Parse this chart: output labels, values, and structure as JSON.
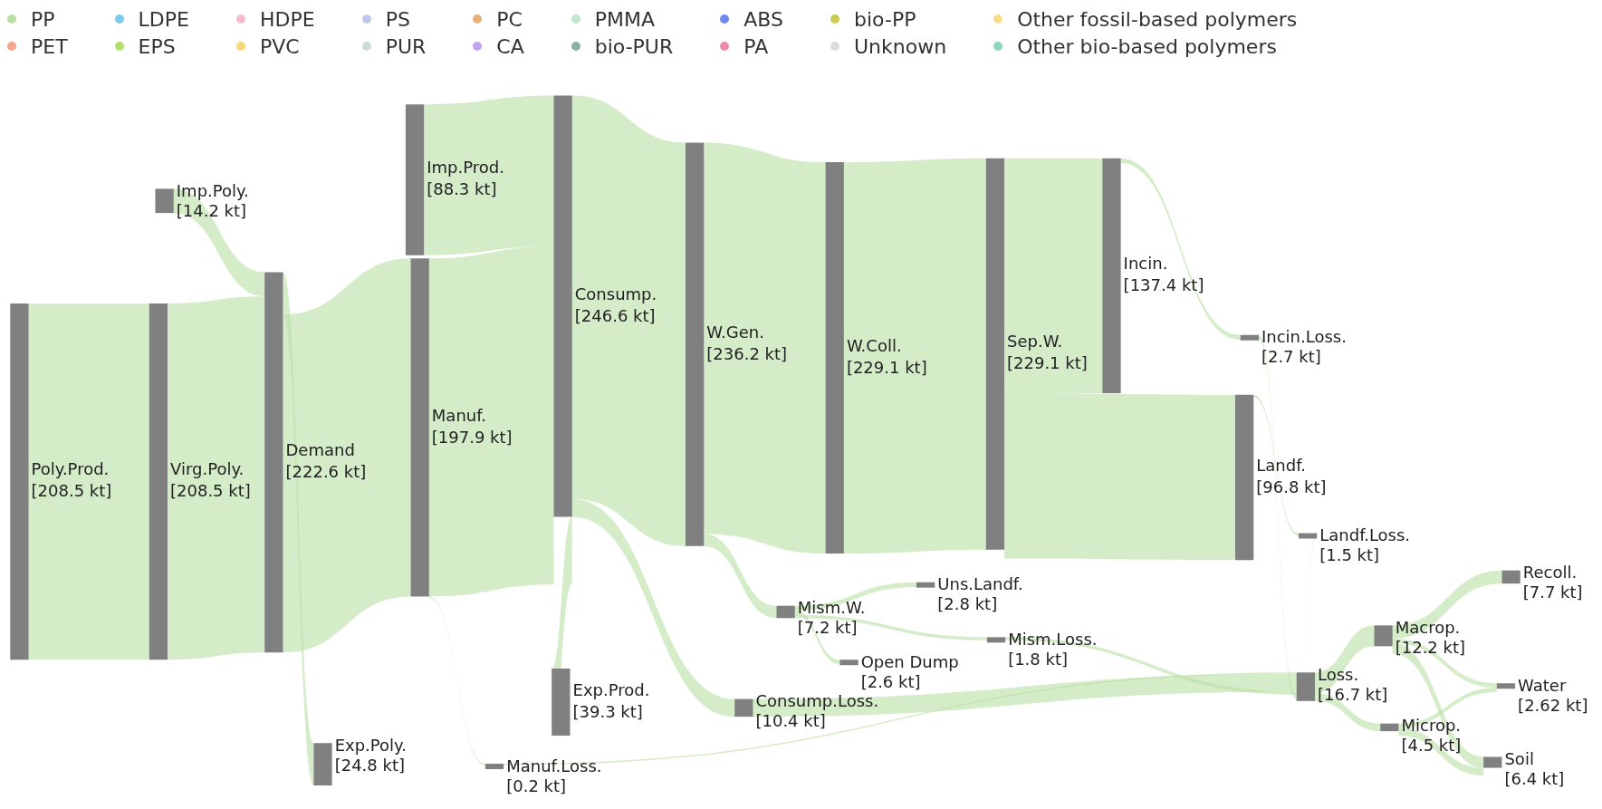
{
  "chart_data": {
    "type": "other",
    "legend": "top",
    "categories": [
      "Poly.Prod.",
      "Imp.Poly.",
      "Virg.Poly.",
      "Demand",
      "Exp.Poly.",
      "Imp.Prod.",
      "Manuf.",
      "Manuf.Loss.",
      "Consump.",
      "Exp.Prod.",
      "Consump.Loss.",
      "W.Gen.",
      "W.Coll.",
      "Mism.W.",
      "Sep.W.",
      "Uns.Landf.",
      "Open Dump",
      "Mism.Loss.",
      "Incin.",
      "Landf.",
      "Incin.Loss.",
      "Landf.Loss.",
      "Loss.",
      "Macrop.",
      "Microp.",
      "Recoll.",
      "Water",
      "Soil"
    ],
    "values": [
      208.5,
      14.2,
      208.5,
      222.6,
      24.8,
      88.3,
      197.9,
      0.2,
      246.6,
      39.3,
      10.4,
      236.2,
      229.1,
      7.2,
      229.1,
      2.8,
      2.6,
      1.8,
      137.4,
      96.8,
      2.7,
      1.5,
      16.7,
      12.2,
      4.5,
      7.7,
      2.62,
      6.4
    ],
    "value_labels": [
      "[208.5 kt]",
      "[14.2 kt]",
      "[208.5 kt]",
      "[222.6 kt]",
      "[24.8 kt]",
      "[88.3 kt]",
      "[197.9 kt]",
      "[0.2 kt]",
      "[246.6 kt]",
      "[39.3 kt]",
      "[10.4 kt]",
      "[236.2 kt]",
      "[229.1 kt]",
      "[7.2 kt]",
      "[229.1 kt]",
      "[2.8 kt]",
      "[2.6 kt]",
      "[1.8 kt]",
      "[137.4 kt]",
      "[96.8 kt]",
      "[2.7 kt]",
      "[1.5 kt]",
      "[16.7 kt]",
      "[12.2 kt]",
      "[4.5 kt]",
      "[7.7 kt]",
      "[2.62 kt]",
      "[6.4 kt]"
    ],
    "series": [
      {
        "name": "PP",
        "color": "#b9dfa5",
        "values": [
          null,
          null,
          null,
          null,
          null,
          null,
          null,
          null,
          null,
          null,
          null,
          null,
          null,
          null,
          null,
          null,
          null,
          null,
          null,
          null,
          null,
          null,
          null,
          null,
          null,
          null,
          null,
          null
        ]
      },
      {
        "name": "PET",
        "color": "#f4a58a",
        "values": [
          null,
          null,
          null,
          null,
          null,
          null,
          null,
          null,
          null,
          null,
          null,
          null,
          null,
          null,
          null,
          null,
          null,
          null,
          null,
          null,
          null,
          null,
          null,
          null,
          null,
          null,
          null,
          null
        ]
      },
      {
        "name": "LDPE",
        "color": "#7ecbee",
        "values": [
          null,
          null,
          null,
          null,
          null,
          null,
          null,
          null,
          null,
          null,
          null,
          null,
          null,
          null,
          null,
          null,
          null,
          null,
          null,
          null,
          null,
          null,
          null,
          null,
          null,
          null,
          null,
          null
        ]
      },
      {
        "name": "EPS",
        "color": "#b5df6a",
        "values": [
          null,
          null,
          null,
          null,
          null,
          null,
          null,
          null,
          null,
          null,
          null,
          null,
          null,
          null,
          null,
          null,
          null,
          null,
          null,
          null,
          null,
          null,
          null,
          null,
          null,
          null,
          null,
          null
        ]
      },
      {
        "name": "HDPE",
        "color": "#f5bccb",
        "values": [
          null,
          null,
          null,
          null,
          null,
          null,
          null,
          null,
          null,
          null,
          null,
          null,
          null,
          null,
          null,
          null,
          null,
          null,
          null,
          null,
          null,
          null,
          null,
          null,
          null,
          null,
          null,
          null
        ]
      },
      {
        "name": "PVC",
        "color": "#f6d87a",
        "values": [
          null,
          null,
          null,
          null,
          null,
          null,
          null,
          null,
          null,
          null,
          null,
          null,
          null,
          null,
          null,
          null,
          null,
          null,
          null,
          null,
          null,
          null,
          null,
          null,
          null,
          null,
          null,
          null
        ]
      },
      {
        "name": "PS",
        "color": "#c3c6ef",
        "values": [
          null,
          null,
          null,
          null,
          null,
          null,
          null,
          null,
          null,
          null,
          null,
          null,
          null,
          null,
          null,
          null,
          null,
          null,
          null,
          null,
          null,
          null,
          null,
          null,
          null,
          null,
          null,
          null
        ]
      },
      {
        "name": "PUR",
        "color": "#ccdad8",
        "values": [
          null,
          null,
          null,
          null,
          null,
          null,
          null,
          null,
          null,
          null,
          null,
          null,
          null,
          null,
          null,
          null,
          null,
          null,
          null,
          null,
          null,
          null,
          null,
          null,
          null,
          null,
          null,
          null
        ]
      },
      {
        "name": "PC",
        "color": "#e6b07a",
        "values": [
          null,
          null,
          null,
          null,
          null,
          null,
          null,
          null,
          null,
          null,
          null,
          null,
          null,
          null,
          null,
          null,
          null,
          null,
          null,
          null,
          null,
          null,
          null,
          null,
          null,
          null,
          null,
          null
        ]
      },
      {
        "name": "CA",
        "color": "#c4a2ef",
        "values": [
          null,
          null,
          null,
          null,
          null,
          null,
          null,
          null,
          null,
          null,
          null,
          null,
          null,
          null,
          null,
          null,
          null,
          null,
          null,
          null,
          null,
          null,
          null,
          null,
          null,
          null,
          null,
          null
        ]
      },
      {
        "name": "PMMA",
        "color": "#bfe4cf",
        "values": [
          null,
          null,
          null,
          null,
          null,
          null,
          null,
          null,
          null,
          null,
          null,
          null,
          null,
          null,
          null,
          null,
          null,
          null,
          null,
          null,
          null,
          null,
          null,
          null,
          null,
          null,
          null,
          null
        ]
      },
      {
        "name": "bio-PUR",
        "color": "#8fb3a0",
        "values": [
          null,
          null,
          null,
          null,
          null,
          null,
          null,
          null,
          null,
          null,
          null,
          null,
          null,
          null,
          null,
          null,
          null,
          null,
          null,
          null,
          null,
          null,
          null,
          null,
          null,
          null,
          null,
          null
        ]
      },
      {
        "name": "ABS",
        "color": "#6f88ef",
        "values": [
          null,
          null,
          null,
          null,
          null,
          null,
          null,
          null,
          null,
          null,
          null,
          null,
          null,
          null,
          null,
          null,
          null,
          null,
          null,
          null,
          null,
          null,
          null,
          null,
          null,
          null,
          null,
          null
        ]
      },
      {
        "name": "PA",
        "color": "#f08caa",
        "values": [
          null,
          null,
          null,
          null,
          null,
          null,
          null,
          null,
          null,
          null,
          null,
          null,
          null,
          null,
          null,
          null,
          null,
          null,
          null,
          null,
          null,
          null,
          null,
          null,
          null,
          null,
          null,
          null
        ]
      },
      {
        "name": "bio-PP",
        "color": "#cccb55",
        "values": [
          null,
          null,
          null,
          null,
          null,
          null,
          null,
          null,
          null,
          null,
          null,
          null,
          null,
          null,
          null,
          null,
          null,
          null,
          null,
          null,
          null,
          null,
          null,
          null,
          null,
          null,
          null,
          null
        ]
      },
      {
        "name": "Unknown",
        "color": "#dcdcdc",
        "values": [
          null,
          null,
          null,
          null,
          null,
          null,
          null,
          null,
          null,
          null,
          null,
          null,
          null,
          null,
          null,
          null,
          null,
          null,
          null,
          null,
          null,
          null,
          null,
          null,
          null,
          null,
          null,
          null
        ]
      },
      {
        "name": "Other fossil-based polymers",
        "color": "#f5df8b",
        "values": [
          null,
          null,
          null,
          null,
          null,
          null,
          null,
          null,
          null,
          null,
          null,
          null,
          null,
          null,
          null,
          null,
          null,
          null,
          null,
          null,
          null,
          null,
          null,
          null,
          null,
          null,
          null,
          null
        ]
      },
      {
        "name": "Other bio-based polymers",
        "color": "#8fd6c0",
        "values": [
          null,
          null,
          null,
          null,
          null,
          null,
          null,
          null,
          null,
          null,
          null,
          null,
          null,
          null,
          null,
          null,
          null,
          null,
          null,
          null,
          null,
          null,
          null,
          null,
          null,
          null,
          null,
          null
        ]
      }
    ]
  }
}
